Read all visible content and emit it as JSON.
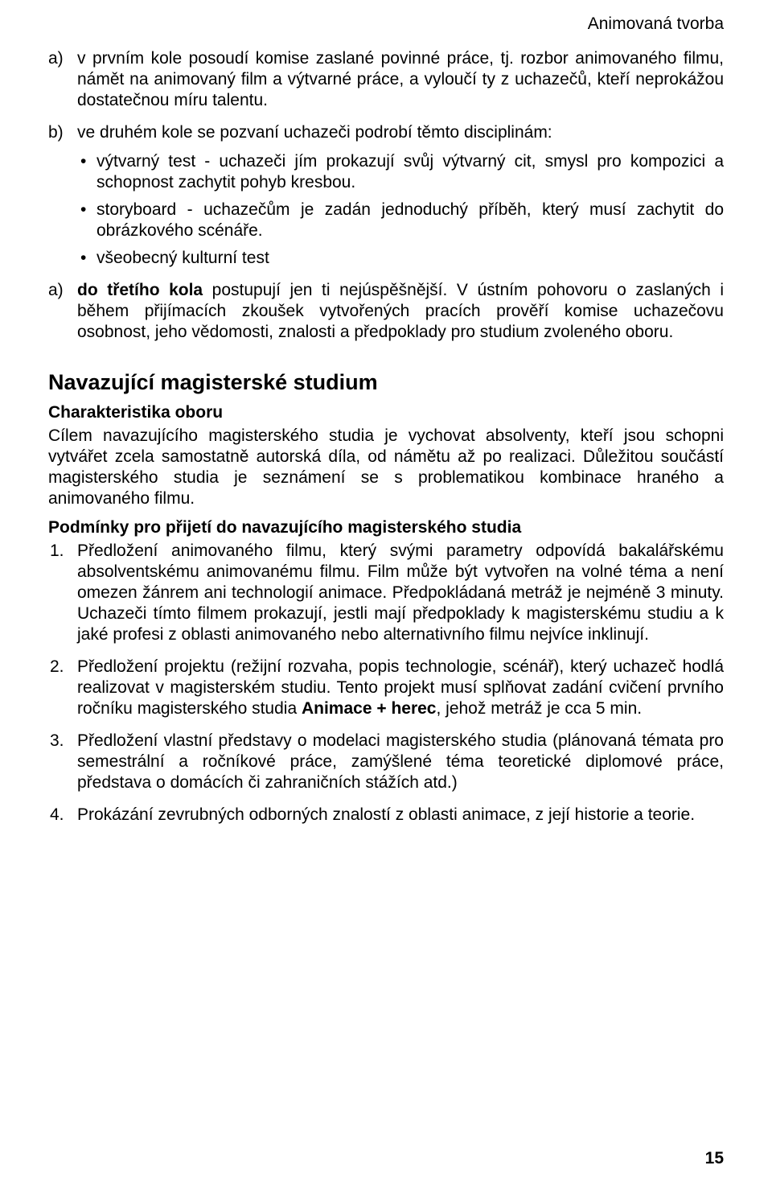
{
  "header": "Animovaná tvorba",
  "list1": {
    "a": {
      "marker": "a)",
      "text": "v prvním kole posoudí komise zaslané povinné práce, tj. rozbor animovaného filmu, námět na animovaný film a výtvarné práce, a vyloučí ty z uchazečů, kteří neprokážou dostatečnou míru talentu."
    },
    "b": {
      "marker": "b)",
      "intro": "ve druhém kole se pozvaní uchazeči podrobí těmto disciplinám:",
      "bullets": [
        "výtvarný test - uchazeči jím prokazují svůj výtvarný cit, smysl pro kompozici a schopnost zachytit pohyb kresbou.",
        "storyboard - uchazečům je zadán jednoduchý příběh, který musí zachytit do obrázkového scénáře.",
        "všeobecný kulturní test"
      ]
    },
    "a2": {
      "marker": "a)",
      "bold_lead": "do třetího kola",
      "rest": " postupují jen ti nejúspěšnější. V ústním pohovoru o zaslaných i během přijímacích zkoušek vytvořených pracích prověří komise uchazečovu osobnost, jeho vědomosti, znalosti a předpoklady pro studium zvoleného oboru."
    }
  },
  "section_heading": "Navazující magisterské studium",
  "char_heading": "Charakteristika oboru",
  "char_body": "Cílem navazujícího magisterského studia je vychovat absolventy, kteří jsou schopni vytvářet zcela samostatně autorská díla, od námětu až po realizaci. Důležitou součástí magisterského studia je seznámení se s problematikou kombinace hraného a animovaného filmu.",
  "cond_heading": "Podmínky pro přijetí do navazujícího magisterského studia",
  "numbered": {
    "n1": {
      "marker": "1.",
      "text": "Předložení animovaného filmu, který svými parametry odpovídá bakalářskému absolventskému animovanému filmu. Film může být vytvořen na volné téma a není omezen žánrem ani technologií animace. Předpokládaná metráž je nejméně 3 minuty. Uchazeči tímto filmem prokazují, jestli mají předpoklady k magisterskému studiu a k jaké profesi z oblasti animovaného nebo alternativního filmu nejvíce inklinují."
    },
    "n2": {
      "marker": "2.",
      "pre": "Předložení projektu (režijní rozvaha, popis technologie, scénář), který uchazeč hodlá realizovat v magisterském studiu. Tento projekt musí splňovat zadání cvičení prvního ročníku magisterského studia ",
      "bold": "Animace + herec",
      "post": ", jehož metráž je cca 5 min."
    },
    "n3": {
      "marker": "3.",
      "text": "Předložení vlastní představy o modelaci magisterského studia (plánovaná témata pro semestrální a ročníkové práce, zamýšlené téma teoretické diplomové práce, představa o domácích či zahraničních stážích atd.)"
    },
    "n4": {
      "marker": "4.",
      "text": "Prokázání zevrubných odborných znalostí z oblasti animace, z její historie a teorie."
    }
  },
  "page_number": "15"
}
